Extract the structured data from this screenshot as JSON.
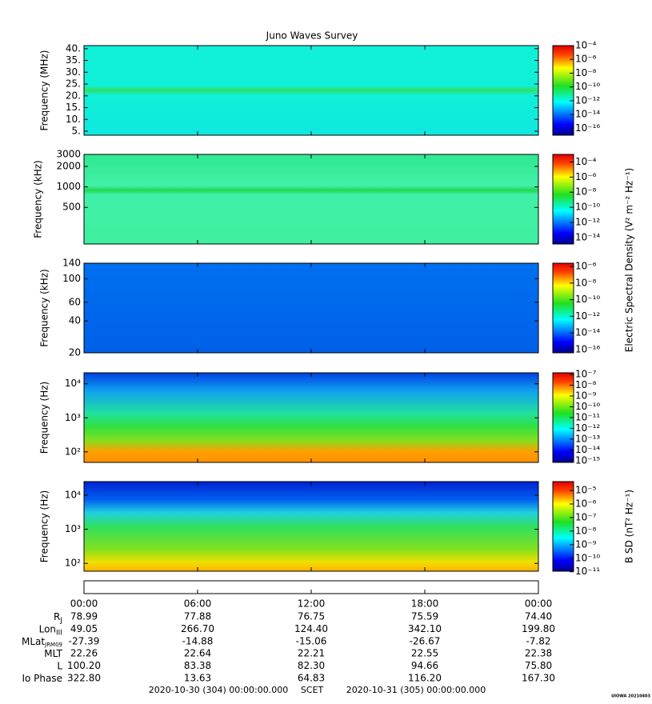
{
  "chart_data": [
    {
      "type": "spectrogram",
      "title": "Juno Waves Survey",
      "ylabel": "Frequency (MHz)",
      "yscale": "linear",
      "ylim": [
        3.3,
        41.3
      ],
      "yticks": [
        {
          "value": 5,
          "label": "5."
        },
        {
          "value": 10,
          "label": "10."
        },
        {
          "value": 15,
          "label": "15."
        },
        {
          "value": 20,
          "label": "20."
        },
        {
          "value": 25,
          "label": "25."
        },
        {
          "value": 30,
          "label": "30."
        },
        {
          "value": 35,
          "label": "35."
        },
        {
          "value": 40,
          "label": "40."
        }
      ],
      "clim": [
        1e-17,
        0.0001
      ],
      "cticks": [
        {
          "value": 0.0001,
          "label": "10⁻⁴"
        },
        {
          "value": 1e-06,
          "label": "10⁻⁶"
        },
        {
          "value": 1e-08,
          "label": "10⁻⁸"
        },
        {
          "value": 1e-10,
          "label": "10⁻¹⁰"
        },
        {
          "value": 1e-12,
          "label": "10⁻¹²"
        },
        {
          "value": 1e-14,
          "label": "10⁻¹⁴"
        },
        {
          "value": 1e-16,
          "label": "10⁻¹⁶"
        }
      ]
    },
    {
      "type": "spectrogram",
      "ylabel": "Frequency (kHz)",
      "yscale": "log",
      "ylim": [
        145,
        3000
      ],
      "yticks": [
        500,
        1000,
        2000,
        3000
      ],
      "clim": [
        1.4e-15,
        0.001
      ],
      "cticks": [
        {
          "value": 0.0001,
          "label": "10⁻⁴"
        },
        {
          "value": 1e-06,
          "label": "10⁻⁶"
        },
        {
          "value": 1e-08,
          "label": "10⁻⁸"
        },
        {
          "value": 1e-10,
          "label": "10⁻¹⁰"
        },
        {
          "value": 1e-12,
          "label": "10⁻¹²"
        },
        {
          "value": 1e-14,
          "label": "10⁻¹⁴"
        }
      ],
      "clabel": "Electric Spectral Density (V² m⁻² Hz⁻¹)"
    },
    {
      "type": "spectrogram",
      "ylabel": "Frequency (kHz)",
      "yscale": "log",
      "ylim": [
        20,
        140
      ],
      "yticks": [
        20,
        40,
        60,
        100,
        140
      ],
      "clim": [
        4e-17,
        2.5e-06
      ],
      "cticks": [
        {
          "value": 1e-06,
          "label": "10⁻⁶"
        },
        {
          "value": 1e-08,
          "label": "10⁻⁸"
        },
        {
          "value": 1e-10,
          "label": "10⁻¹⁰"
        },
        {
          "value": 1e-12,
          "label": "10⁻¹²"
        },
        {
          "value": 1e-14,
          "label": "10⁻¹⁴"
        },
        {
          "value": 1e-16,
          "label": "10⁻¹⁶"
        }
      ]
    },
    {
      "type": "spectrogram",
      "ylabel": "Frequency (Hz)",
      "yscale": "log",
      "ylim": [
        49,
        21000
      ],
      "yticks": [
        {
          "value": 100,
          "label": "10²"
        },
        {
          "value": 1000,
          "label": "10³"
        },
        {
          "value": 10000,
          "label": "10⁴"
        }
      ],
      "clim": [
        7e-16,
        1.4e-07
      ],
      "cticks": [
        {
          "value": 1e-07,
          "label": "10⁻⁷"
        },
        {
          "value": 1e-08,
          "label": "10⁻⁸"
        },
        {
          "value": 1e-09,
          "label": "10⁻⁹"
        },
        {
          "value": 1e-10,
          "label": "10⁻¹⁰"
        },
        {
          "value": 1e-11,
          "label": "10⁻¹¹"
        },
        {
          "value": 1e-12,
          "label": "10⁻¹²"
        },
        {
          "value": 1e-13,
          "label": "10⁻¹³"
        },
        {
          "value": 1e-14,
          "label": "10⁻¹⁴"
        },
        {
          "value": 1e-15,
          "label": "10⁻¹⁵"
        }
      ]
    },
    {
      "type": "spectrogram",
      "ylabel": "Frequency (Hz)",
      "yscale": "log",
      "ylim": [
        59,
        25000
      ],
      "yticks": [
        {
          "value": 100,
          "label": "10²"
        },
        {
          "value": 1000,
          "label": "10³"
        },
        {
          "value": 10000,
          "label": "10⁴"
        }
      ],
      "clim": [
        1.1e-11,
        4.5e-05
      ],
      "cticks": [
        {
          "value": 1e-05,
          "label": "10⁻⁵"
        },
        {
          "value": 1e-06,
          "label": "10⁻⁶"
        },
        {
          "value": 1e-07,
          "label": "10⁻⁷"
        },
        {
          "value": 1e-08,
          "label": "10⁻⁸"
        },
        {
          "value": 1e-09,
          "label": "10⁻⁹"
        },
        {
          "value": 1e-10,
          "label": "10⁻¹⁰"
        },
        {
          "value": 1e-11,
          "label": "10⁻¹¹"
        }
      ],
      "clabel": "B SD (nT² Hz⁻¹)"
    }
  ],
  "time_axis": {
    "xlim": [
      0,
      24
    ],
    "xticks": [
      {
        "value": 0,
        "label": "00:00"
      },
      {
        "value": 6,
        "label": "06:00"
      },
      {
        "value": 12,
        "label": "12:00"
      },
      {
        "value": 18,
        "label": "18:00"
      },
      {
        "value": 24,
        "label": "00:00"
      }
    ]
  },
  "ephemeris": [
    {
      "label": "R",
      "sub": "J",
      "values": [
        "78.99",
        "77.88",
        "76.75",
        "75.59",
        "74.40"
      ]
    },
    {
      "label": "Lon",
      "sub": "III",
      "values": [
        "49.05",
        "266.70",
        "124.40",
        "342.10",
        "199.80"
      ]
    },
    {
      "label": "MLat",
      "sub": "JRM09",
      "values": [
        "-27.39",
        "-14.88",
        "-15.06",
        "-26.67",
        "-7.82"
      ]
    },
    {
      "label": "MLT",
      "values": [
        "22.26",
        "22.64",
        "22.21",
        "22.55",
        "22.38"
      ]
    },
    {
      "label": "L",
      "values": [
        "100.20",
        "83.38",
        "82.30",
        "94.66",
        "75.80"
      ]
    },
    {
      "label": "Io Phase",
      "values": [
        "322.80",
        "13.63",
        "64.83",
        "116.20",
        "167.30"
      ]
    }
  ],
  "footer": {
    "start": "2020-10-30 (304) 00:00:00.000",
    "frame": "SCET",
    "end": "2020-10-31 (305) 00:00:00.000"
  },
  "stamp": "UIOWA 20210403"
}
